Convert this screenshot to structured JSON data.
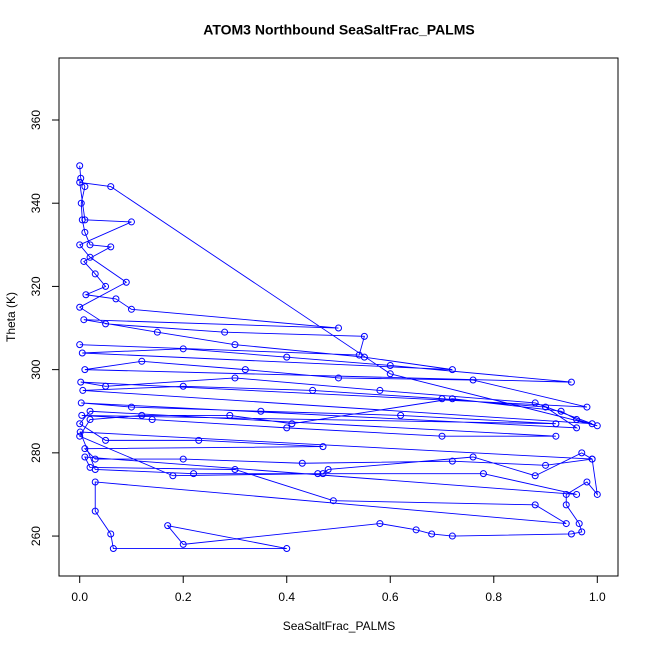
{
  "chart_data": {
    "type": "line",
    "title": "ATOM3 Northbound SeaSaltFrac_PALMS",
    "x_label": "SeaSaltFrac_PALMS",
    "y_label": "Theta (K)",
    "color": "#0000ff",
    "markers": true,
    "xlim": [
      -0.04,
      1.04
    ],
    "ylim": [
      250.4,
      374.9
    ],
    "xticks": [
      {
        "value": 0,
        "label": "0.0"
      },
      0.2,
      0.4,
      0.6,
      0.8,
      {
        "value": 1,
        "label": "1.0"
      }
    ],
    "yticks": [
      260,
      280,
      300,
      320,
      340,
      360
    ],
    "x": [
      0,
      0.002,
      0.01,
      0.003,
      0.005,
      0.01,
      0.02,
      0.06,
      0.008,
      0.03,
      0.05,
      0.012,
      0.07,
      0.1,
      0.5,
      0.008,
      0.15,
      0.3,
      0.55,
      0.72,
      0.005,
      0.2,
      0.4,
      0.6,
      0.95,
      0.01,
      0.12,
      0.32,
      0.5,
      0.76,
      0.98,
      0.002,
      0.05,
      0.3,
      0.58,
      0.88,
      0.99,
      0.006,
      0.2,
      0.45,
      0.7,
      0.9,
      0.96,
      0.003,
      0.1,
      0.35,
      0.62,
      0.92,
      0.004,
      0.14,
      0.4,
      0.7,
      0.92,
      0.02,
      0,
      0.05,
      0.23,
      0.47,
      0.01,
      0.03,
      0.2,
      0.43,
      0.72,
      0.9,
      0.99,
      0.001,
      0.03,
      0.22,
      0.46,
      0.78,
      0.96,
      0.01,
      0.02,
      0.3,
      0.49,
      0.88,
      0.94,
      0.03,
      0.03,
      0.06,
      0.065,
      0.4,
      0.17,
      0.2,
      0.58,
      0.65,
      0.68,
      0.72,
      0.95,
      0.97,
      0.965,
      0.94,
      0.94,
      0.98,
      1,
      0.99,
      0.97,
      0.88,
      0.76,
      0.48,
      0.47,
      0.18,
      0,
      0.02,
      0.12,
      0.29,
      0.41,
      0.72,
      0.93,
      0.96,
      1,
      0.6,
      0.06,
      0,
      0.01,
      0.1,
      0,
      0.02,
      0.09,
      0,
      0.05,
      0.28,
      0.55,
      0.54,
      0
    ],
    "values": [
      349,
      346,
      344,
      340,
      336,
      333,
      330,
      329.5,
      326,
      323,
      320,
      318,
      317,
      314.5,
      310,
      312,
      309,
      306,
      303,
      300,
      304,
      305,
      303,
      301,
      297,
      300,
      302,
      300,
      298,
      297.5,
      291,
      297,
      296,
      298,
      295,
      292,
      287,
      295,
      296,
      295,
      293,
      291,
      286,
      292,
      291,
      290,
      289,
      287,
      289,
      288,
      286,
      284,
      284,
      290,
      287,
      283,
      283,
      281.5,
      281,
      278.5,
      278.5,
      277.5,
      278,
      277,
      278.5,
      285,
      276,
      275,
      275,
      275,
      270,
      279,
      276.5,
      276,
      268.5,
      267.5,
      263,
      273,
      266,
      260.5,
      257,
      257,
      262.5,
      258,
      263,
      261.5,
      260.5,
      260,
      260.5,
      261,
      263,
      267.5,
      270,
      273,
      270,
      278.5,
      280,
      274.5,
      279,
      276,
      275,
      274.5,
      284,
      288,
      289,
      289,
      287,
      293,
      290,
      288,
      286.5,
      299,
      344,
      345,
      336,
      335.5,
      330,
      327,
      321,
      315,
      311,
      309,
      308,
      303.5,
      306
    ]
  }
}
